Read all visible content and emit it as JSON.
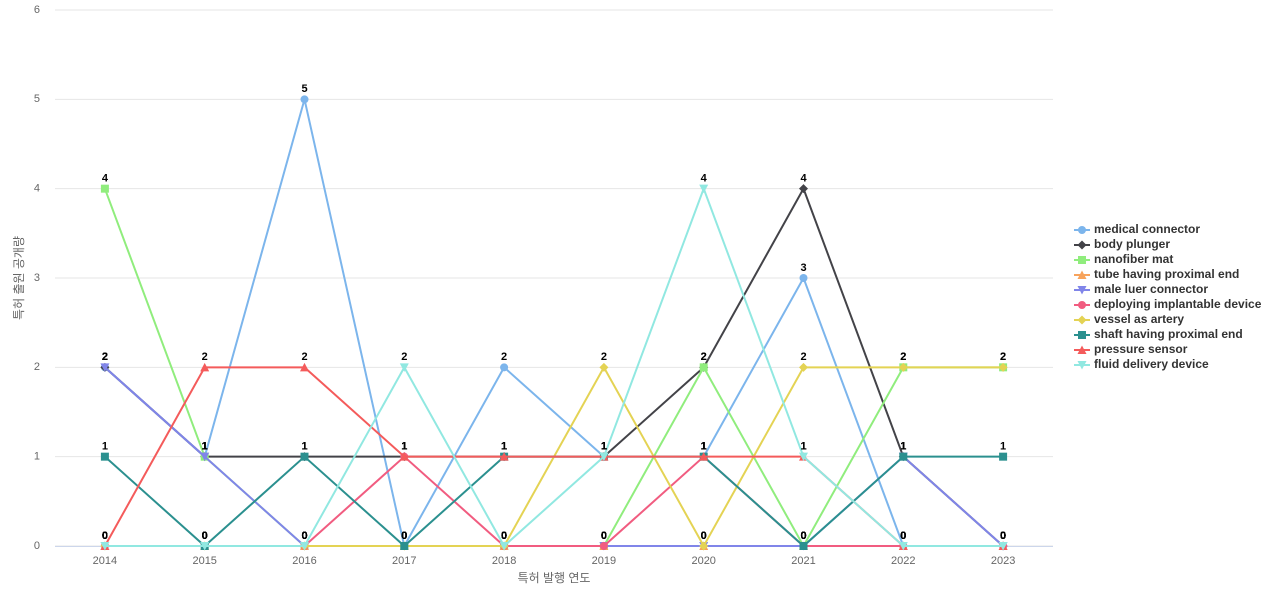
{
  "chart_data": {
    "type": "line",
    "x_label": "특허 발행 연도",
    "y_label": "특허 출원 공개량",
    "categories": [
      "2014",
      "2015",
      "2016",
      "2017",
      "2018",
      "2019",
      "2020",
      "2021",
      "2022",
      "2023"
    ],
    "ylim": [
      0,
      6
    ],
    "yticks": [
      0,
      1,
      2,
      3,
      4,
      5,
      6
    ],
    "grid": true,
    "legend": "right",
    "series": [
      {
        "name": "medical connector",
        "color": "#7cb5ec",
        "values": [
          2,
          1,
          5,
          0,
          2,
          1,
          1,
          3,
          0,
          0
        ]
      },
      {
        "name": "body plunger",
        "color": "#434348",
        "values": [
          2,
          1,
          1,
          1,
          1,
          1,
          2,
          4,
          1,
          0
        ]
      },
      {
        "name": "nanofiber mat",
        "color": "#90ed7d",
        "values": [
          4,
          1,
          0,
          0,
          0,
          0,
          2,
          0,
          2,
          2
        ]
      },
      {
        "name": "tube having proximal end",
        "color": "#f7a35c",
        "values": [
          0,
          0,
          0,
          0,
          0,
          0,
          0,
          0,
          0,
          0
        ]
      },
      {
        "name": "male luer connector",
        "color": "#8085e9",
        "values": [
          2,
          1,
          0,
          0,
          0,
          0,
          0,
          0,
          1,
          0
        ]
      },
      {
        "name": "deploying implantable device",
        "color": "#f15c80",
        "values": [
          0,
          0,
          0,
          1,
          0,
          0,
          1,
          0,
          0,
          0
        ]
      },
      {
        "name": "vessel as artery",
        "color": "#e4d354",
        "values": [
          0,
          0,
          0,
          0,
          0,
          2,
          0,
          2,
          2,
          2
        ]
      },
      {
        "name": "shaft having proximal end",
        "color": "#2b908f",
        "values": [
          1,
          0,
          1,
          0,
          1,
          1,
          1,
          0,
          1,
          1
        ]
      },
      {
        "name": "pressure sensor",
        "color": "#f45b5b",
        "values": [
          0,
          2,
          2,
          1,
          1,
          1,
          1,
          1,
          0,
          0
        ]
      },
      {
        "name": "fluid delivery device",
        "color": "#91e8e1",
        "values": [
          0,
          0,
          0,
          2,
          0,
          1,
          4,
          1,
          0,
          0
        ]
      }
    ]
  }
}
